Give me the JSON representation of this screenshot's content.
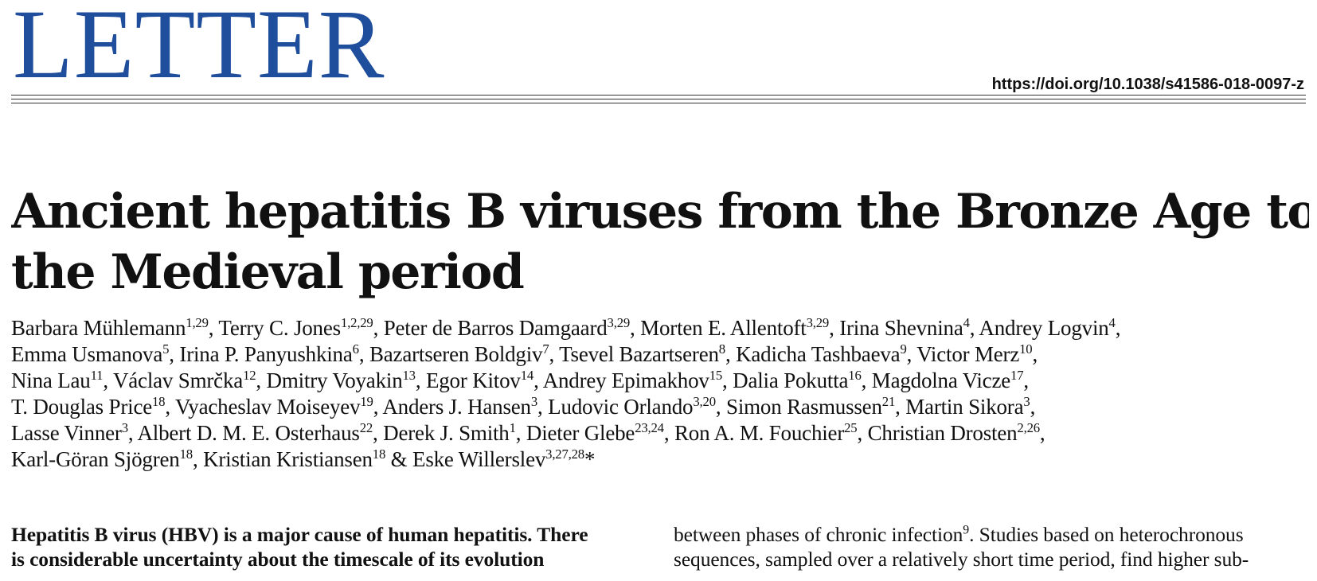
{
  "header": {
    "section_label": "LETTER",
    "doi": "https://doi.org/10.1038/s41586-018-0097-z",
    "accent_color": "#1f4e9c"
  },
  "article": {
    "title_lines": [
      "Ancient hepatitis B viruses from the Bronze Age to",
      "the Medieval period"
    ],
    "authors": [
      {
        "name": "Barbara Mühlemann",
        "aff": "1,29"
      },
      {
        "name": "Terry C. Jones",
        "aff": "1,2,29"
      },
      {
        "name": "Peter de Barros Damgaard",
        "aff": "3,29"
      },
      {
        "name": "Morten E. Allentoft",
        "aff": "3,29"
      },
      {
        "name": "Irina Shevnina",
        "aff": "4"
      },
      {
        "name": "Andrey Logvin",
        "aff": "4"
      },
      {
        "name": "Emma Usmanova",
        "aff": "5"
      },
      {
        "name": "Irina P. Panyushkina",
        "aff": "6"
      },
      {
        "name": "Bazartseren Boldgiv",
        "aff": "7"
      },
      {
        "name": "Tsevel Bazartseren",
        "aff": "8"
      },
      {
        "name": "Kadicha Tashbaeva",
        "aff": "9"
      },
      {
        "name": "Victor Merz",
        "aff": "10"
      },
      {
        "name": "Nina Lau",
        "aff": "11"
      },
      {
        "name": "Václav Smrčka",
        "aff": "12"
      },
      {
        "name": "Dmitry Voyakin",
        "aff": "13"
      },
      {
        "name": "Egor Kitov",
        "aff": "14"
      },
      {
        "name": "Andrey Epimakhov",
        "aff": "15"
      },
      {
        "name": "Dalia Pokutta",
        "aff": "16"
      },
      {
        "name": "Magdolna Vicze",
        "aff": "17"
      },
      {
        "name": "T. Douglas Price",
        "aff": "18"
      },
      {
        "name": "Vyacheslav Moiseyev",
        "aff": "19"
      },
      {
        "name": "Anders J. Hansen",
        "aff": "3"
      },
      {
        "name": "Ludovic Orlando",
        "aff": "3,20"
      },
      {
        "name": "Simon Rasmussen",
        "aff": "21"
      },
      {
        "name": "Martin Sikora",
        "aff": "3"
      },
      {
        "name": "Lasse Vinner",
        "aff": "3"
      },
      {
        "name": "Albert D. M. E. Osterhaus",
        "aff": "22"
      },
      {
        "name": "Derek J. Smith",
        "aff": "1"
      },
      {
        "name": "Dieter Glebe",
        "aff": "23,24"
      },
      {
        "name": "Ron A. M. Fouchier",
        "aff": "25"
      },
      {
        "name": "Christian Drosten",
        "aff": "2,26"
      },
      {
        "name": "Karl-Göran Sjögren",
        "aff": "18"
      },
      {
        "name": "Kristian Kristiansen",
        "aff": "18"
      },
      {
        "name": "Eske Willerslev",
        "aff": "3,27,28"
      }
    ],
    "author_separator": ", ",
    "last_separator": " & ",
    "corresponding_mark": "*",
    "author_line_breaks_after": [
      5,
      11,
      18,
      24,
      30
    ],
    "abstract_left_lines": [
      "Hepatitis B virus (HBV) is a major cause of human hepatitis. There",
      "is considerable uncertainty about the timescale of its evolution"
    ],
    "body_right_lines": [
      {
        "text": "between phases of chronic infection",
        "sup": "9",
        "rest": ". Studies based on heterochronous"
      },
      {
        "text": "sequences, sampled over a relatively short time period, find higher sub-",
        "sup": "",
        "rest": ""
      }
    ]
  }
}
